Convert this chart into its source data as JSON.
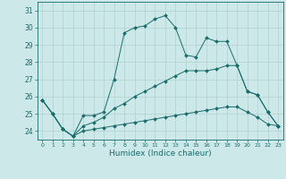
{
  "xlabel": "Humidex (Indice chaleur)",
  "bg_color": "#cce8e8",
  "line_color": "#1a6b6b",
  "grid_color": "#b0d0d0",
  "xlim": [
    -0.5,
    23.5
  ],
  "ylim": [
    23.5,
    31.5
  ],
  "xticks": [
    0,
    1,
    2,
    3,
    4,
    5,
    6,
    7,
    8,
    9,
    10,
    11,
    12,
    13,
    14,
    15,
    16,
    17,
    18,
    19,
    20,
    21,
    22,
    23
  ],
  "yticks": [
    24,
    25,
    26,
    27,
    28,
    29,
    30,
    31
  ],
  "series1_x": [
    0,
    1,
    2,
    3,
    4,
    5,
    6,
    7,
    8,
    9,
    10,
    11,
    12,
    13,
    14,
    15,
    16,
    17,
    18,
    19,
    20,
    21,
    22,
    23
  ],
  "series1_y": [
    25.8,
    25.0,
    24.1,
    23.7,
    24.9,
    24.9,
    25.1,
    27.0,
    29.7,
    30.0,
    30.1,
    30.5,
    30.7,
    30.0,
    28.4,
    28.3,
    29.4,
    29.2,
    29.2,
    27.8,
    26.3,
    26.1,
    25.1,
    24.3
  ],
  "series2_x": [
    0,
    1,
    2,
    3,
    4,
    5,
    6,
    7,
    8,
    9,
    10,
    11,
    12,
    13,
    14,
    15,
    16,
    17,
    18,
    19,
    20,
    21,
    22,
    23
  ],
  "series2_y": [
    25.8,
    25.0,
    24.1,
    23.7,
    24.3,
    24.5,
    24.8,
    25.3,
    25.6,
    26.0,
    26.3,
    26.6,
    26.9,
    27.2,
    27.5,
    27.5,
    27.5,
    27.6,
    27.8,
    27.8,
    26.3,
    26.1,
    25.1,
    24.3
  ],
  "series3_x": [
    0,
    1,
    2,
    3,
    4,
    5,
    6,
    7,
    8,
    9,
    10,
    11,
    12,
    13,
    14,
    15,
    16,
    17,
    18,
    19,
    20,
    21,
    22,
    23
  ],
  "series3_y": [
    25.8,
    25.0,
    24.1,
    23.7,
    24.0,
    24.1,
    24.2,
    24.3,
    24.4,
    24.5,
    24.6,
    24.7,
    24.8,
    24.9,
    25.0,
    25.1,
    25.2,
    25.3,
    25.4,
    25.4,
    25.1,
    24.8,
    24.4,
    24.3
  ]
}
